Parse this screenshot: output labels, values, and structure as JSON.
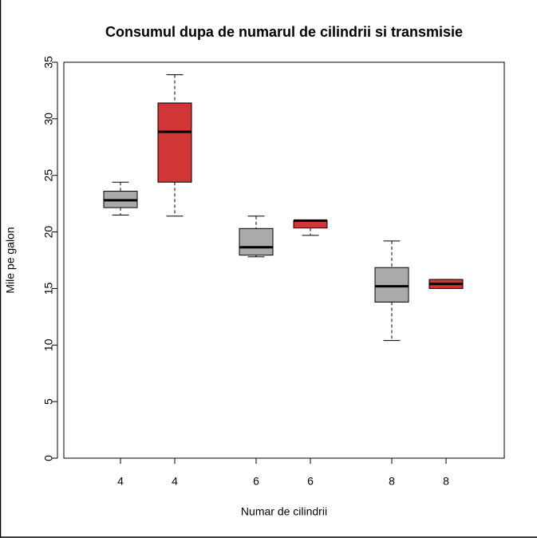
{
  "chart_data": {
    "type": "box",
    "title": "Consumul dupa de numarul de cilindrii si transmisie",
    "x_label": "Numar de cilindrii",
    "y_label": "Mile pe galon",
    "categories": [
      "4",
      "4",
      "6",
      "6",
      "8",
      "8"
    ],
    "boxes": [
      {
        "color": "#aaaaaa",
        "min": 21.5,
        "q1": 22.15,
        "median": 22.8,
        "q3": 23.6,
        "max": 24.4
      },
      {
        "color": "#d13535",
        "min": 21.4,
        "q1": 24.4,
        "median": 28.85,
        "q3": 31.4,
        "max": 33.9
      },
      {
        "color": "#aaaaaa",
        "min": 17.8,
        "q1": 17.95,
        "median": 18.65,
        "q3": 20.3,
        "max": 21.4
      },
      {
        "color": "#d13535",
        "min": 19.7,
        "q1": 20.35,
        "median": 21.0,
        "q3": 21.0,
        "max": 21.0
      },
      {
        "color": "#aaaaaa",
        "min": 10.4,
        "q1": 13.8,
        "median": 15.2,
        "q3": 16.85,
        "max": 19.2
      },
      {
        "color": "#d13535",
        "min": 15.0,
        "q1": 15.0,
        "median": 15.4,
        "q3": 15.8,
        "max": 15.8
      }
    ],
    "ylim": [
      0,
      35
    ],
    "yticks": [
      0,
      5,
      10,
      15,
      20,
      25,
      30,
      35
    ]
  }
}
